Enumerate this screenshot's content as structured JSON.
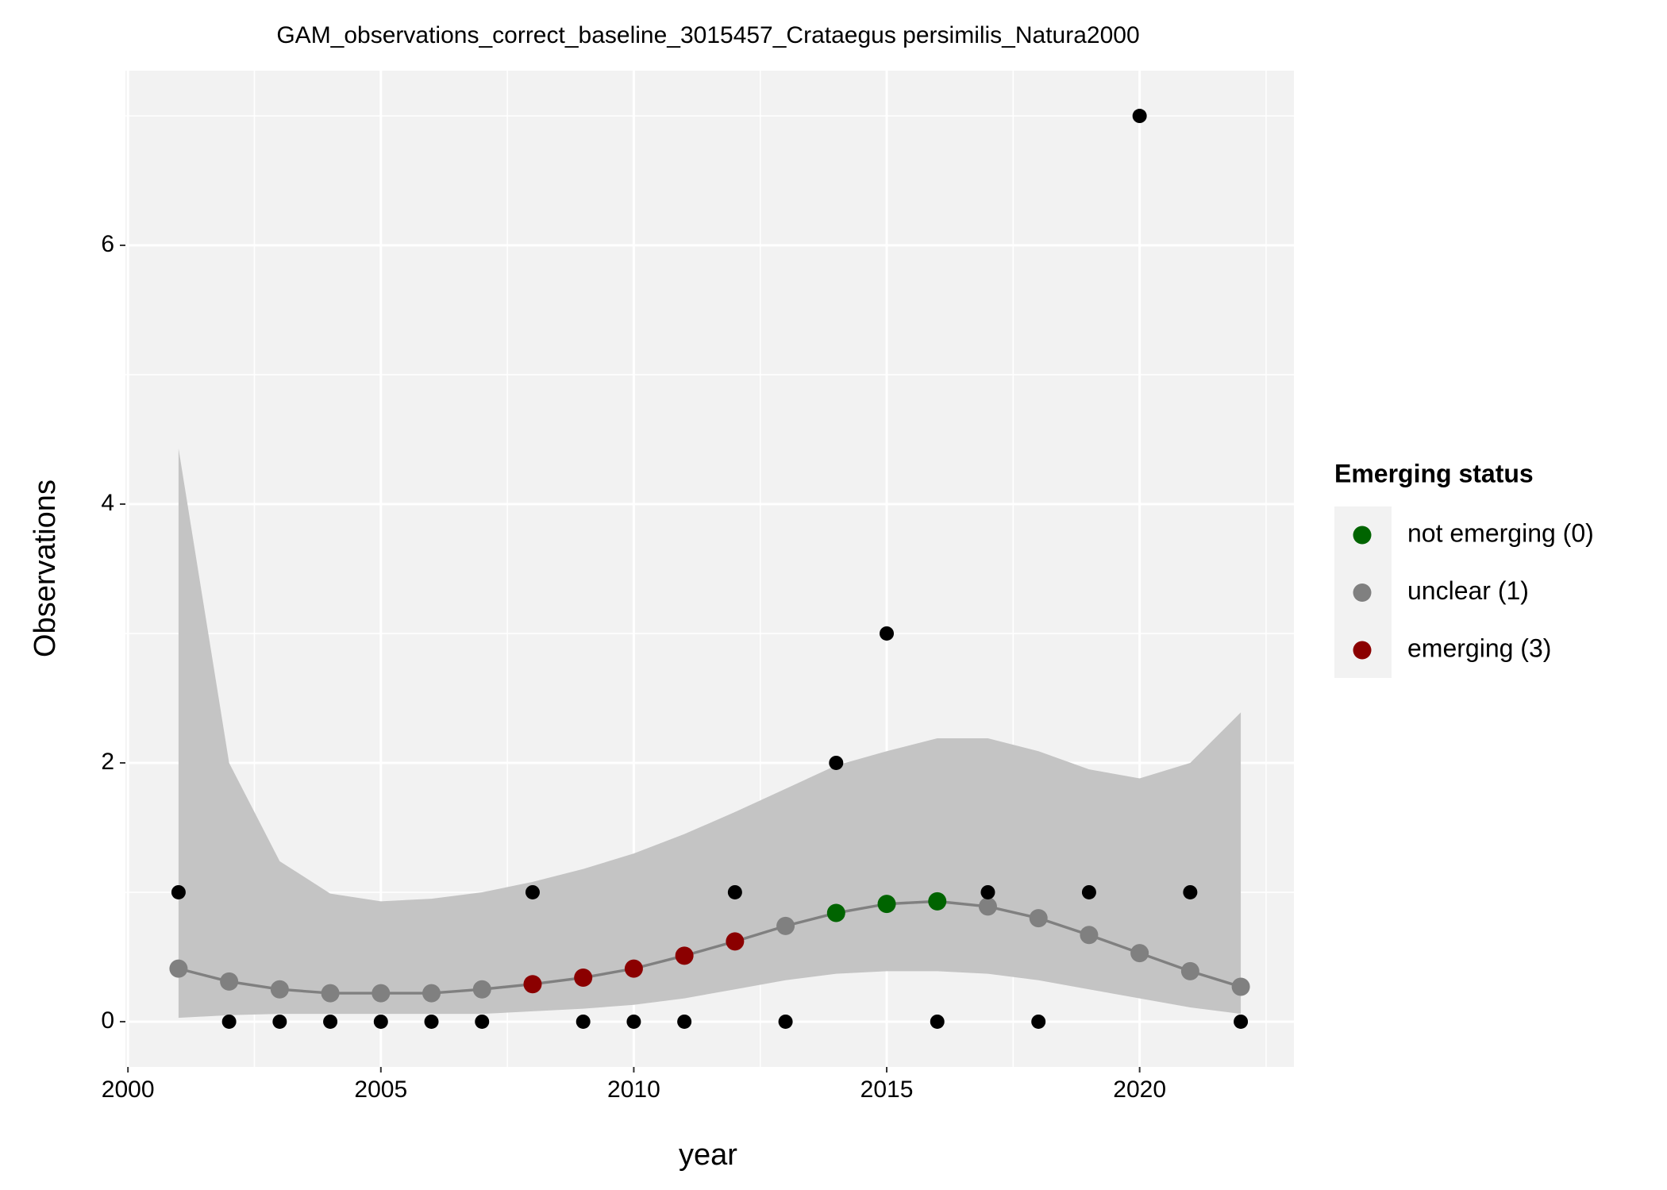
{
  "chart_data": {
    "type": "gam",
    "title": "GAM_observations_correct_baseline_3015457_Crataegus persimilis_Natura2000",
    "x_label": "year",
    "y_label": "Observations",
    "x": [
      2001,
      2002,
      2003,
      2004,
      2005,
      2006,
      2007,
      2008,
      2009,
      2010,
      2011,
      2012,
      2013,
      2014,
      2015,
      2016,
      2017,
      2018,
      2019,
      2020,
      2021,
      2022
    ],
    "observations": [
      1,
      0,
      0,
      0,
      0,
      0,
      0,
      1,
      0,
      0,
      0,
      1,
      0,
      2,
      3,
      0,
      1,
      0,
      1,
      7,
      1,
      0
    ],
    "fit": [
      0.41,
      0.31,
      0.25,
      0.22,
      0.22,
      0.22,
      0.25,
      0.29,
      0.34,
      0.41,
      0.51,
      0.62,
      0.74,
      0.84,
      0.91,
      0.93,
      0.89,
      0.8,
      0.67,
      0.53,
      0.39,
      0.27
    ],
    "upper": [
      4.43,
      2.0,
      1.24,
      0.99,
      0.93,
      0.95,
      1.0,
      1.08,
      1.18,
      1.3,
      1.45,
      1.62,
      1.8,
      1.98,
      2.09,
      2.19,
      2.19,
      2.09,
      1.95,
      1.88,
      2.0,
      2.39
    ],
    "lower": [
      0.03,
      0.05,
      0.06,
      0.06,
      0.06,
      0.06,
      0.06,
      0.08,
      0.1,
      0.13,
      0.18,
      0.25,
      0.32,
      0.37,
      0.39,
      0.39,
      0.37,
      0.32,
      0.25,
      0.18,
      0.11,
      0.06
    ],
    "status": [
      "unclear (1)",
      "unclear (1)",
      "unclear (1)",
      "unclear (1)",
      "unclear (1)",
      "unclear (1)",
      "unclear (1)",
      "emerging (3)",
      "emerging (3)",
      "emerging (3)",
      "emerging (3)",
      "emerging (3)",
      "unclear (1)",
      "not emerging (0)",
      "not emerging (0)",
      "not emerging (0)",
      "unclear (1)",
      "unclear (1)",
      "unclear (1)",
      "unclear (1)",
      "unclear (1)",
      "unclear (1)"
    ],
    "legend": {
      "title": "Emerging status",
      "items": [
        {
          "label": "not emerging (0)",
          "color": "#006400"
        },
        {
          "label": "unclear (1)",
          "color": "#808080"
        },
        {
          "label": "emerging (3)",
          "color": "#8b0000"
        }
      ]
    },
    "observation_color": "#000000",
    "line_color": "#808080",
    "ribbon_color": "#c4c4c4",
    "xlim": [
      1999.95,
      2023.05
    ],
    "xticks": [
      2000,
      2005,
      2010,
      2015,
      2020
    ],
    "ylim": [
      -0.35,
      7.35
    ],
    "yticks": [
      0,
      2,
      4,
      6
    ],
    "grid": true
  }
}
